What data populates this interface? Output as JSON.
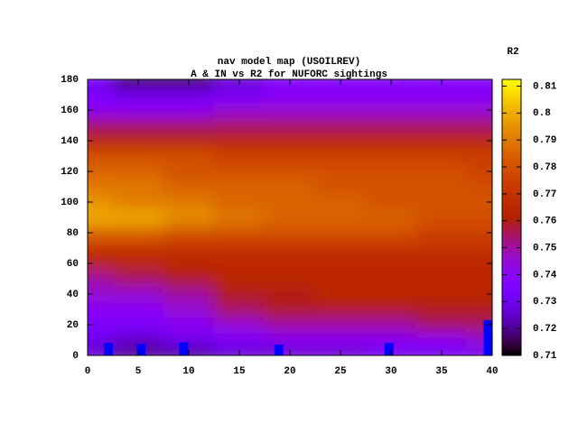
{
  "chart_data": {
    "type": "heatmap",
    "title": "nav model map (USOILREV)",
    "subtitle": "A & IN vs R2 for NUFORC sightings",
    "x": [
      0,
      5,
      10,
      15,
      20,
      25,
      30,
      35,
      40
    ],
    "y": [
      0,
      10,
      20,
      30,
      40,
      50,
      60,
      70,
      80,
      90,
      100,
      110,
      120,
      130,
      140,
      150,
      160,
      170,
      180
    ],
    "z": [
      [
        0.725,
        0.72,
        0.72,
        0.725,
        0.725,
        0.725,
        0.73,
        0.73,
        0.73
      ],
      [
        0.73,
        0.725,
        0.73,
        0.735,
        0.74,
        0.74,
        0.74,
        0.74,
        0.745
      ],
      [
        0.735,
        0.735,
        0.74,
        0.745,
        0.75,
        0.75,
        0.75,
        0.755,
        0.755
      ],
      [
        0.74,
        0.74,
        0.745,
        0.755,
        0.76,
        0.76,
        0.76,
        0.76,
        0.76
      ],
      [
        0.745,
        0.745,
        0.75,
        0.76,
        0.76,
        0.765,
        0.765,
        0.765,
        0.765
      ],
      [
        0.75,
        0.755,
        0.76,
        0.765,
        0.765,
        0.765,
        0.765,
        0.765,
        0.765
      ],
      [
        0.765,
        0.765,
        0.765,
        0.765,
        0.765,
        0.765,
        0.765,
        0.765,
        0.765
      ],
      [
        0.77,
        0.77,
        0.77,
        0.77,
        0.77,
        0.77,
        0.77,
        0.77,
        0.77
      ],
      [
        0.785,
        0.785,
        0.78,
        0.78,
        0.78,
        0.78,
        0.78,
        0.775,
        0.775
      ],
      [
        0.8,
        0.8,
        0.795,
        0.79,
        0.785,
        0.785,
        0.785,
        0.78,
        0.78
      ],
      [
        0.795,
        0.79,
        0.79,
        0.785,
        0.785,
        0.785,
        0.78,
        0.78,
        0.78
      ],
      [
        0.79,
        0.79,
        0.785,
        0.785,
        0.785,
        0.78,
        0.78,
        0.78,
        0.78
      ],
      [
        0.785,
        0.785,
        0.78,
        0.78,
        0.78,
        0.78,
        0.78,
        0.78,
        0.775
      ],
      [
        0.78,
        0.78,
        0.78,
        0.775,
        0.775,
        0.775,
        0.775,
        0.775,
        0.775
      ],
      [
        0.765,
        0.765,
        0.765,
        0.765,
        0.765,
        0.765,
        0.765,
        0.765,
        0.765
      ],
      [
        0.755,
        0.755,
        0.755,
        0.755,
        0.755,
        0.755,
        0.755,
        0.755,
        0.755
      ],
      [
        0.74,
        0.74,
        0.74,
        0.745,
        0.745,
        0.745,
        0.745,
        0.745,
        0.745
      ],
      [
        0.735,
        0.73,
        0.73,
        0.735,
        0.74,
        0.74,
        0.74,
        0.74,
        0.74
      ],
      [
        0.73,
        0.715,
        0.715,
        0.725,
        0.735,
        0.735,
        0.735,
        0.735,
        0.735
      ]
    ],
    "points": {
      "color": "#0000ff",
      "x": [
        2.05,
        5.3,
        9.5,
        18.9,
        29.8,
        39.6
      ],
      "values": [
        8,
        7.5,
        8.5,
        7,
        8,
        23
      ]
    },
    "xlim": [
      0,
      40
    ],
    "xticks": [
      0,
      5,
      10,
      15,
      20,
      25,
      30,
      35,
      40
    ],
    "ylim": [
      0,
      180
    ],
    "yticks": [
      0,
      20,
      40,
      60,
      80,
      100,
      120,
      140,
      160,
      180
    ],
    "colorbar": {
      "label": "R2",
      "zlim": [
        0.71,
        0.8125
      ],
      "zticks": [
        0.71,
        0.72,
        0.73,
        0.74,
        0.75,
        0.76,
        0.77,
        0.78,
        0.79,
        0.8,
        0.81
      ]
    }
  }
}
